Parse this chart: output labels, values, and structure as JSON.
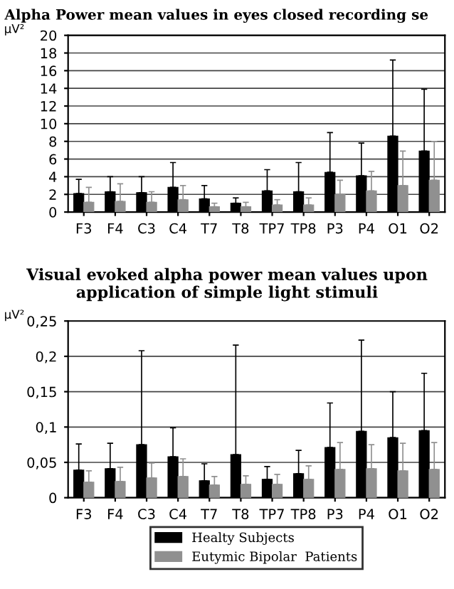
{
  "chart_data": [
    {
      "type": "bar",
      "title": "Alpha Power mean values in eyes closed recording se",
      "ylabel": "µV²",
      "categories": [
        "F3",
        "F4",
        "C3",
        "C4",
        "T7",
        "T8",
        "TP7",
        "TP8",
        "P3",
        "P4",
        "O1",
        "O2"
      ],
      "series": [
        {
          "color": "#000000",
          "values": [
            2.1,
            2.3,
            2.2,
            2.8,
            1.5,
            1.0,
            2.4,
            2.3,
            4.5,
            4.1,
            8.6,
            6.9
          ],
          "errors": [
            [
              2.1,
              3.7
            ],
            [
              2.3,
              4.0
            ],
            [
              2.2,
              4.0
            ],
            [
              2.8,
              5.6
            ],
            [
              1.5,
              3.0
            ],
            [
              1.0,
              1.6
            ],
            [
              2.4,
              4.8
            ],
            [
              2.3,
              5.6
            ],
            [
              4.5,
              9.0
            ],
            [
              4.1,
              7.8
            ],
            [
              8.6,
              17.2
            ],
            [
              6.9,
              13.9
            ]
          ]
        },
        {
          "color": "#909090",
          "values": [
            1.1,
            1.2,
            1.1,
            1.4,
            0.6,
            0.6,
            0.8,
            0.8,
            2.0,
            2.4,
            3.0,
            3.6
          ],
          "errors": [
            [
              1.1,
              2.8
            ],
            [
              1.2,
              3.2
            ],
            [
              1.1,
              2.3
            ],
            [
              1.4,
              3.0
            ],
            [
              0.6,
              1.0
            ],
            [
              0.6,
              1.1
            ],
            [
              0.8,
              1.4
            ],
            [
              0.8,
              1.6
            ],
            [
              2.0,
              3.6
            ],
            [
              2.4,
              4.6
            ],
            [
              3.0,
              6.9
            ],
            [
              3.6,
              8.0
            ]
          ]
        }
      ],
      "ylim": [
        0,
        20
      ],
      "yticks": [
        0,
        2,
        4,
        6,
        8,
        10,
        12,
        14,
        16,
        18,
        20
      ],
      "grid": "y",
      "legend": false
    },
    {
      "type": "bar",
      "title": "Visual evoked alpha power mean values upon application of simple light stimuli",
      "ylabel": "µV²",
      "categories": [
        "F3",
        "F4",
        "C3",
        "C4",
        "T7",
        "T8",
        "TP7",
        "TP8",
        "P3",
        "P4",
        "O1",
        "O2"
      ],
      "series": [
        {
          "name": "Healty Subjects",
          "color": "#000000",
          "values": [
            0.039,
            0.041,
            0.075,
            0.058,
            0.024,
            0.061,
            0.026,
            0.034,
            0.071,
            0.094,
            0.085,
            0.095
          ],
          "errors": [
            [
              0.039,
              0.076
            ],
            [
              0.041,
              0.077
            ],
            [
              0.075,
              0.208
            ],
            [
              0.058,
              0.099
            ],
            [
              0.024,
              0.048
            ],
            [
              0.061,
              0.216
            ],
            [
              0.026,
              0.044
            ],
            [
              0.034,
              0.067
            ],
            [
              0.071,
              0.134
            ],
            [
              0.094,
              0.223
            ],
            [
              0.085,
              0.15
            ],
            [
              0.095,
              0.176
            ]
          ]
        },
        {
          "name": "Eutymic Bipolar  Patients",
          "color": "#909090",
          "values": [
            0.022,
            0.023,
            0.028,
            0.03,
            0.018,
            0.019,
            0.019,
            0.026,
            0.04,
            0.041,
            0.038,
            0.04
          ],
          "errors": [
            [
              0.022,
              0.038
            ],
            [
              0.023,
              0.043
            ],
            [
              0.028,
              0.049
            ],
            [
              0.03,
              0.055
            ],
            [
              0.018,
              0.03
            ],
            [
              0.019,
              0.031
            ],
            [
              0.019,
              0.033
            ],
            [
              0.026,
              0.045
            ],
            [
              0.04,
              0.078
            ],
            [
              0.041,
              0.075
            ],
            [
              0.038,
              0.077
            ],
            [
              0.04,
              0.078
            ]
          ]
        }
      ],
      "ylim": [
        0,
        0.25
      ],
      "yticks": [
        0,
        {
          "value": 0.05,
          "label": "0,05"
        },
        {
          "value": 0.1,
          "label": "0,1"
        },
        {
          "value": 0.15,
          "label": "0,15"
        },
        {
          "value": 0.2,
          "label": "0,2"
        },
        {
          "value": 0.25,
          "label": "0,25"
        }
      ],
      "grid": "y",
      "legend": "bottom"
    }
  ]
}
